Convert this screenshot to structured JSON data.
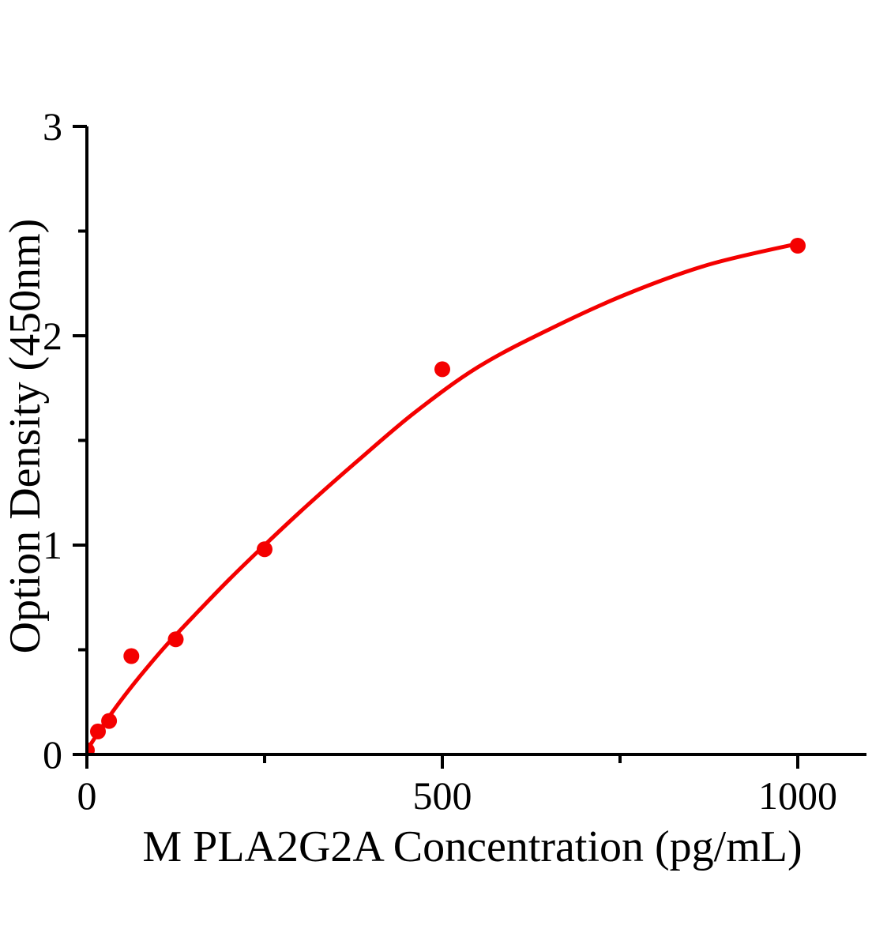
{
  "page": {
    "background": "#ffffff"
  },
  "chart": {
    "plot_background": "#ffffff",
    "axis_color": "#000000",
    "text_color": "#000000",
    "accent_color": "#f40000"
  },
  "chart_data": {
    "type": "scatter",
    "title": "",
    "xlabel": "M PLA2G2A Concentration（pg/mL）",
    "ylabel": "Option Density（450nm）",
    "xlim": [
      0,
      1097
    ],
    "ylim": [
      0,
      3
    ],
    "x_ticks_major": [
      0,
      500,
      1000
    ],
    "x_ticks_minor": [
      250,
      750
    ],
    "y_ticks_major": [
      0,
      1,
      2,
      3
    ],
    "y_ticks_minor": [
      0.5,
      1.5,
      2.5
    ],
    "grid": false,
    "legend": false,
    "series": [
      {
        "name": "standard-points",
        "type": "scatter",
        "color": "#f40000",
        "marker": "circle",
        "marker_radius_px": 10,
        "x": [
          0,
          15.6,
          31.2,
          62.5,
          125,
          250,
          500,
          1000
        ],
        "y": [
          0.02,
          0.11,
          0.16,
          0.47,
          0.55,
          0.98,
          1.84,
          2.43
        ]
      },
      {
        "name": "fitted-curve",
        "type": "line",
        "color": "#f40000",
        "stroke_width_px": 5,
        "x": [
          0,
          20,
          45,
          75,
          110,
          150,
          200,
          250,
          310,
          380,
          460,
          550,
          650,
          760,
          875,
          1000
        ],
        "y": [
          0.02,
          0.125,
          0.245,
          0.375,
          0.515,
          0.66,
          0.835,
          1.0,
          1.19,
          1.4,
          1.63,
          1.85,
          2.03,
          2.2,
          2.34,
          2.44
        ]
      }
    ]
  }
}
